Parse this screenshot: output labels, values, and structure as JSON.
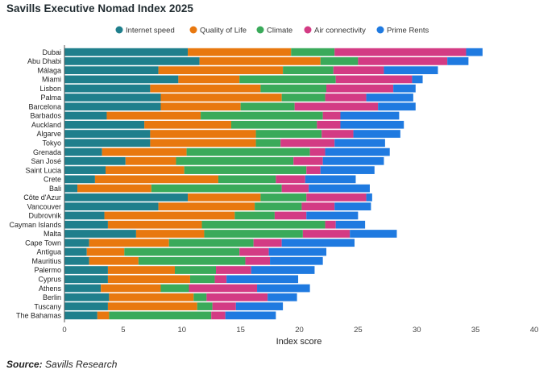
{
  "title": "Savills Executive Nomad Index 2025",
  "source_label": "Source:",
  "source_text": "Savills Research",
  "chart_data": {
    "type": "bar",
    "orientation": "horizontal",
    "stacked": true,
    "title": "Savills Executive Nomad Index 2025",
    "xlabel": "Index score",
    "ylabel": "",
    "xlim": [
      0,
      40
    ],
    "xticks": [
      0,
      5,
      10,
      15,
      20,
      25,
      30,
      35,
      40
    ],
    "grid": false,
    "legend_position": "top",
    "categories": [
      "Dubai",
      "Abu Dhabi",
      "Málaga",
      "Miami",
      "Lisbon",
      "Palma",
      "Barcelona",
      "Barbados",
      "Auckland",
      "Algarve",
      "Tokyo",
      "Grenada",
      "San José",
      "Saint Lucia",
      "Crete",
      "Bali",
      "Côte d'Azur",
      "Vancouver",
      "Dubrovnik",
      "Cayman Islands",
      "Malta",
      "Cape Town",
      "Antigua",
      "Mauritius",
      "Palermo",
      "Cyprus",
      "Athens",
      "Berlin",
      "Tuscany",
      "The Bahamas"
    ],
    "series": [
      {
        "name": "Internet speed",
        "color": "#1f7f8c",
        "values": [
          10.5,
          11.5,
          8,
          9.7,
          7.3,
          8.2,
          8.2,
          3.6,
          6.8,
          7.3,
          7.3,
          3.2,
          5.2,
          3.5,
          2.6,
          1.1,
          10.5,
          8,
          3.4,
          3.7,
          6.1,
          2.1,
          1.9,
          2.1,
          3.7,
          3.7,
          3.1,
          3.8,
          3.7,
          2.8
        ]
      },
      {
        "name": "Quality of Life",
        "color": "#e8780f",
        "values": [
          8.8,
          10.3,
          10.6,
          5.2,
          9.4,
          10.3,
          6.8,
          8,
          7.4,
          9,
          9,
          7.2,
          4.3,
          6.7,
          10.5,
          6.3,
          6.2,
          8.2,
          11.1,
          8,
          5.8,
          6.8,
          3.2,
          4.2,
          5.7,
          7,
          5.1,
          7.2,
          7.6,
          1
        ]
      },
      {
        "name": "Climate",
        "color": "#3aaa5a",
        "values": [
          3.7,
          3.2,
          4.3,
          8.2,
          5.6,
          3.7,
          4.6,
          10.4,
          7.3,
          5.6,
          2.1,
          10.5,
          10,
          10.4,
          4.9,
          11.1,
          3.9,
          4,
          3.4,
          10.5,
          8.4,
          7.2,
          9.8,
          9.1,
          3.5,
          2.1,
          2.4,
          1.1,
          1.3,
          8.7
        ]
      },
      {
        "name": "Air connectivity",
        "color": "#d33b84",
        "values": [
          11.2,
          7.6,
          4.3,
          6.5,
          5.7,
          3.5,
          7.1,
          1.5,
          2,
          2.7,
          4.6,
          1.3,
          2.5,
          1.2,
          2.5,
          2.3,
          5.1,
          2.8,
          2.7,
          0.9,
          4,
          2.4,
          2.5,
          2.1,
          3,
          1,
          5.8,
          5.2,
          2,
          1.2
        ]
      },
      {
        "name": "Prime Rents",
        "color": "#1f7ae0",
        "values": [
          1.4,
          1.8,
          4.6,
          0.9,
          1.9,
          4,
          3.2,
          5,
          5.4,
          4,
          4.3,
          5.5,
          5.2,
          4.6,
          4.3,
          5.2,
          0.5,
          3.1,
          4.4,
          2.5,
          4,
          6.2,
          4.9,
          4.5,
          5.4,
          6.1,
          4.5,
          2.5,
          4,
          4.3
        ]
      }
    ]
  }
}
